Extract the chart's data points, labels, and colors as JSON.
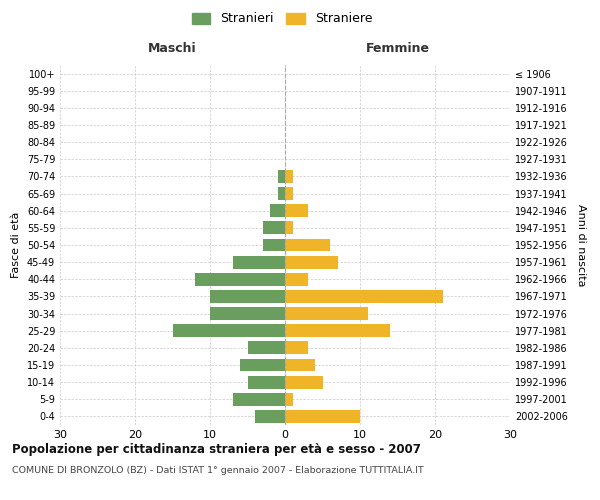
{
  "age_groups": [
    "100+",
    "95-99",
    "90-94",
    "85-89",
    "80-84",
    "75-79",
    "70-74",
    "65-69",
    "60-64",
    "55-59",
    "50-54",
    "45-49",
    "40-44",
    "35-39",
    "30-34",
    "25-29",
    "20-24",
    "15-19",
    "10-14",
    "5-9",
    "0-4"
  ],
  "birth_years": [
    "≤ 1906",
    "1907-1911",
    "1912-1916",
    "1917-1921",
    "1922-1926",
    "1927-1931",
    "1932-1936",
    "1937-1941",
    "1942-1946",
    "1947-1951",
    "1952-1956",
    "1957-1961",
    "1962-1966",
    "1967-1971",
    "1972-1976",
    "1977-1981",
    "1982-1986",
    "1987-1991",
    "1992-1996",
    "1997-2001",
    "2002-2006"
  ],
  "males": [
    0,
    0,
    0,
    0,
    0,
    0,
    1,
    1,
    2,
    3,
    3,
    7,
    12,
    10,
    10,
    15,
    5,
    6,
    5,
    7,
    4
  ],
  "females": [
    0,
    0,
    0,
    0,
    0,
    0,
    1,
    1,
    3,
    1,
    6,
    7,
    3,
    21,
    11,
    14,
    3,
    4,
    5,
    1,
    10
  ],
  "male_color": "#6a9e5e",
  "female_color": "#f0b429",
  "xlim": 30,
  "title": "Popolazione per cittadinanza straniera per età e sesso - 2007",
  "subtitle": "COMUNE DI BRONZOLO (BZ) - Dati ISTAT 1° gennaio 2007 - Elaborazione TUTTITALIA.IT",
  "xlabel_left": "Maschi",
  "xlabel_right": "Femmine",
  "ylabel_left": "Fasce di età",
  "ylabel_right": "Anni di nascita",
  "legend_males": "Stranieri",
  "legend_females": "Straniere",
  "bg_color": "#ffffff",
  "grid_color": "#cccccc",
  "bar_height": 0.75
}
